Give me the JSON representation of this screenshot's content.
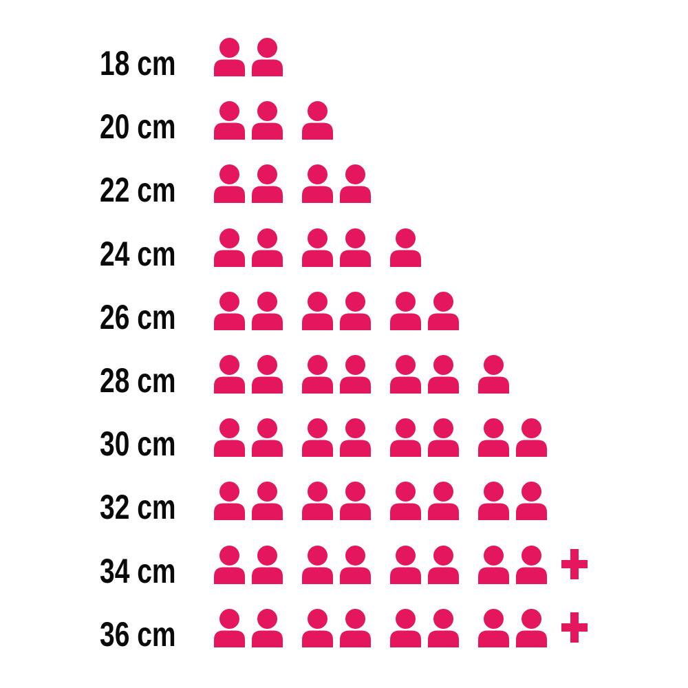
{
  "chart_data": {
    "type": "bar",
    "style": "pictogram",
    "orientation": "horizontal",
    "icon": "person-icon",
    "icon_unit": 1,
    "categories": [
      "18 cm",
      "20 cm",
      "22 cm",
      "24 cm",
      "26 cm",
      "28 cm",
      "30 cm",
      "32 cm",
      "34 cm",
      "36 cm"
    ],
    "values": [
      2,
      3,
      4,
      5,
      6,
      7,
      8,
      8,
      8,
      8
    ],
    "display_values": [
      "2",
      "3",
      "4",
      "5",
      "6",
      "7",
      "8",
      "8",
      "8+",
      "8+"
    ],
    "overflow_plus": [
      false,
      false,
      false,
      false,
      false,
      false,
      false,
      false,
      true,
      true
    ],
    "title": "",
    "xlabel": "",
    "ylabel": "",
    "legend": "none",
    "grid": false,
    "icon_color": "#e4175e",
    "label_color": "#0a0a0a",
    "background_color": "#ffffff",
    "icon_grouping": 2
  },
  "rows": [
    {
      "label": "18 cm",
      "count": 2,
      "plus": false
    },
    {
      "label": "20 cm",
      "count": 3,
      "plus": false
    },
    {
      "label": "22 cm",
      "count": 4,
      "plus": false
    },
    {
      "label": "24 cm",
      "count": 5,
      "plus": false
    },
    {
      "label": "26 cm",
      "count": 6,
      "plus": false
    },
    {
      "label": "28 cm",
      "count": 7,
      "plus": false
    },
    {
      "label": "30 cm",
      "count": 8,
      "plus": false
    },
    {
      "label": "32 cm",
      "count": 8,
      "plus": false
    },
    {
      "label": "34 cm",
      "count": 8,
      "plus": true
    },
    {
      "label": "36 cm",
      "count": 8,
      "plus": true
    }
  ]
}
